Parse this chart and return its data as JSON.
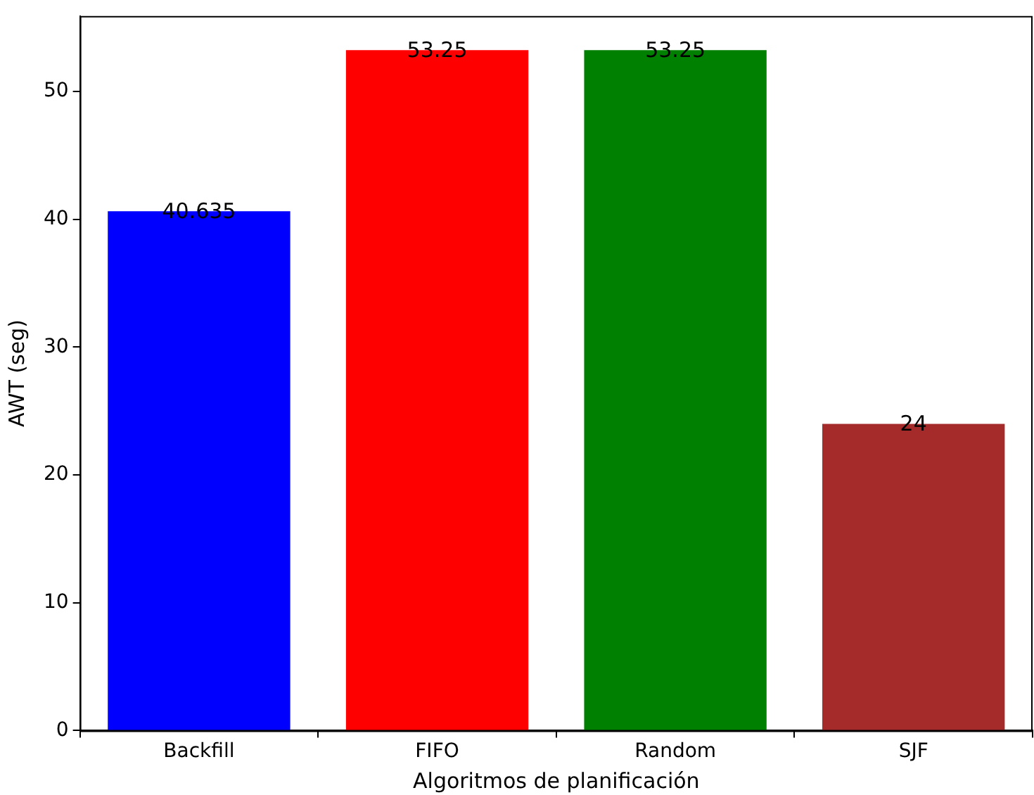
{
  "chart_data": {
    "type": "bar",
    "xlabel": "Algoritmos de planificación",
    "ylabel": "AWT (seg)",
    "categories": [
      "Backfill",
      "FIFO",
      "Random",
      "SJF"
    ],
    "values": [
      40.635,
      53.25,
      53.25,
      24
    ],
    "colors": [
      "#0000ff",
      "#ff0000",
      "#008000",
      "#a52a2a"
    ],
    "ylim": [
      0,
      55.9125
    ],
    "yticks": [
      0,
      10,
      20,
      30,
      40,
      50
    ],
    "grid": false,
    "legend": false,
    "data_labels": true
  }
}
